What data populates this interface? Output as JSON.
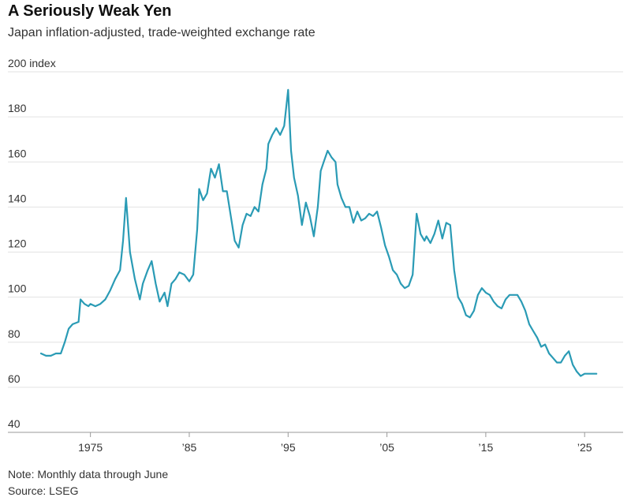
{
  "title": "A Seriously Weak Yen",
  "subtitle": "Japan inflation-adjusted, trade-weighted exchange rate",
  "note": "Note: Monthly data through June",
  "source": "Source: LSEG",
  "colors": {
    "line": "#2a9bb5",
    "grid": "#e2e2e2",
    "axis": "#999999"
  },
  "chart_data": {
    "type": "line",
    "title": "A Seriously Weak Yen",
    "subtitle": "Japan inflation-adjusted, trade-weighted exchange rate",
    "ylabel": "index",
    "ylim": [
      40,
      200
    ],
    "xlim": [
      1970,
      2026.5
    ],
    "grid": true,
    "y_ticks": [
      40,
      60,
      80,
      100,
      120,
      140,
      160,
      180,
      200
    ],
    "y_tick_labels": [
      "40",
      "60",
      "80",
      "100",
      "120",
      "140",
      "160",
      "180",
      "200 index"
    ],
    "x_ticks": [
      1975,
      1985,
      1995,
      2005,
      2015,
      2025
    ],
    "x_tick_labels": [
      "1975",
      "’85",
      "’95",
      "’05",
      "’15",
      "’25"
    ],
    "series": [
      {
        "x": [
          1970.0,
          1970.5,
          1971.0,
          1971.5,
          1972.0,
          1972.4,
          1972.8,
          1973.2,
          1973.8,
          1974.0,
          1974.4,
          1974.8,
          1975.0,
          1975.5,
          1976.0,
          1976.5,
          1977.0,
          1977.5,
          1978.0,
          1978.3,
          1978.6,
          1979.0,
          1979.5,
          1980.0,
          1980.3,
          1980.8,
          1981.2,
          1981.6,
          1982.0,
          1982.5,
          1982.8,
          1983.2,
          1983.6,
          1984.0,
          1984.5,
          1985.0,
          1985.4,
          1985.8,
          1986.0,
          1986.4,
          1986.8,
          1987.2,
          1987.6,
          1988.0,
          1988.4,
          1988.8,
          1989.2,
          1989.6,
          1990.0,
          1990.4,
          1990.8,
          1991.2,
          1991.6,
          1992.0,
          1992.4,
          1992.8,
          1993.0,
          1993.4,
          1993.8,
          1994.2,
          1994.6,
          1995.0,
          1995.3,
          1995.6,
          1996.0,
          1996.4,
          1996.8,
          1997.2,
          1997.6,
          1998.0,
          1998.3,
          1998.6,
          1999.0,
          1999.4,
          1999.8,
          2000.0,
          2000.4,
          2000.8,
          2001.2,
          2001.6,
          2002.0,
          2002.4,
          2002.8,
          2003.2,
          2003.6,
          2004.0,
          2004.4,
          2004.8,
          2005.2,
          2005.6,
          2006.0,
          2006.4,
          2006.8,
          2007.2,
          2007.6,
          2008.0,
          2008.4,
          2008.8,
          2009.0,
          2009.4,
          2009.8,
          2010.2,
          2010.6,
          2011.0,
          2011.4,
          2011.8,
          2012.2,
          2012.6,
          2013.0,
          2013.4,
          2013.8,
          2014.2,
          2014.6,
          2015.0,
          2015.4,
          2015.8,
          2016.2,
          2016.6,
          2017.0,
          2017.4,
          2017.8,
          2018.2,
          2018.6,
          2019.0,
          2019.4,
          2019.8,
          2020.2,
          2020.6,
          2021.0,
          2021.4,
          2021.8,
          2022.2,
          2022.6,
          2023.0,
          2023.4,
          2023.8,
          2024.2,
          2024.6,
          2025.0,
          2025.4,
          2025.8,
          2026.2
        ],
        "values": [
          75,
          74,
          74,
          75,
          75,
          80,
          86,
          88,
          89,
          99,
          97,
          96,
          97,
          96,
          97,
          99,
          103,
          108,
          112,
          125,
          144,
          120,
          108,
          99,
          106,
          112,
          116,
          106,
          98,
          102,
          96,
          106,
          108,
          111,
          110,
          107,
          110,
          130,
          148,
          143,
          146,
          157,
          153,
          159,
          147,
          147,
          136,
          125,
          122,
          132,
          137,
          136,
          140,
          138,
          150,
          157,
          168,
          172,
          175,
          172,
          176,
          192,
          165,
          153,
          145,
          132,
          142,
          136,
          127,
          140,
          156,
          160,
          165,
          162,
          160,
          150,
          144,
          140,
          140,
          133,
          138,
          134,
          135,
          137,
          136,
          138,
          131,
          123,
          118,
          112,
          110,
          106,
          104,
          105,
          110,
          137,
          128,
          125,
          127,
          124,
          128,
          134,
          126,
          133,
          132,
          112,
          100,
          97,
          92,
          91,
          94,
          101,
          104,
          102,
          101,
          98,
          96,
          95,
          99,
          101,
          101,
          101,
          98,
          94,
          88,
          85,
          82,
          78,
          79,
          75,
          73,
          71,
          71,
          74,
          76,
          70,
          67,
          65,
          66,
          66,
          66,
          66
        ]
      }
    ]
  }
}
